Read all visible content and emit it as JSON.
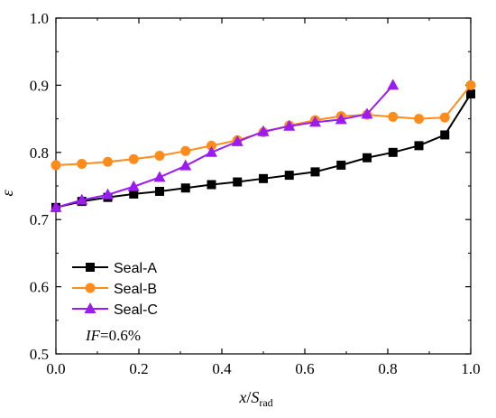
{
  "chart_data": {
    "type": "line",
    "title": "",
    "xlabel_main": "x",
    "xlabel_sep": "/",
    "xlabel_sym": "S",
    "xlabel_sub": "rad",
    "ylabel": "ε",
    "xlim": [
      0.0,
      1.0
    ],
    "ylim": [
      0.5,
      1.0
    ],
    "x_ticks": [
      0.0,
      0.2,
      0.4,
      0.6,
      0.8,
      1.0
    ],
    "x_tick_labels": [
      "0.0",
      "0.2",
      "0.4",
      "0.6",
      "0.8",
      "1.0"
    ],
    "y_ticks": [
      0.5,
      0.6,
      0.7,
      0.8,
      0.9,
      1.0
    ],
    "y_tick_labels": [
      "0.5",
      "0.6",
      "0.7",
      "0.8",
      "0.9",
      "1.0"
    ],
    "grid": false,
    "legend_position": "bottom-left",
    "annotation_italic": "IF",
    "annotation_rest": "=0.6%",
    "series": [
      {
        "name": "Seal-A",
        "marker": "square",
        "color": "#000000",
        "x": [
          0.0,
          0.0625,
          0.125,
          0.1875,
          0.25,
          0.3125,
          0.375,
          0.4375,
          0.5,
          0.5625,
          0.625,
          0.6875,
          0.75,
          0.8125,
          0.875,
          0.9375,
          1.0
        ],
        "y": [
          0.718,
          0.727,
          0.733,
          0.738,
          0.742,
          0.747,
          0.752,
          0.756,
          0.761,
          0.766,
          0.771,
          0.781,
          0.792,
          0.8,
          0.81,
          0.826,
          0.887
        ]
      },
      {
        "name": "Seal-B",
        "marker": "circle",
        "color": "#ff8c1a",
        "x": [
          0.0,
          0.0625,
          0.125,
          0.1875,
          0.25,
          0.3125,
          0.375,
          0.4375,
          0.5,
          0.5625,
          0.625,
          0.6875,
          0.75,
          0.8125,
          0.875,
          0.9375,
          1.0
        ],
        "y": [
          0.781,
          0.783,
          0.786,
          0.79,
          0.795,
          0.802,
          0.81,
          0.818,
          0.83,
          0.84,
          0.848,
          0.854,
          0.856,
          0.853,
          0.85,
          0.852,
          0.9
        ]
      },
      {
        "name": "Seal-C",
        "marker": "triangle",
        "color": "#9b1cf2",
        "x": [
          0.0,
          0.0625,
          0.125,
          0.1875,
          0.25,
          0.3125,
          0.375,
          0.4375,
          0.5,
          0.5625,
          0.625,
          0.6875,
          0.75,
          0.8125
        ],
        "y": [
          0.718,
          0.729,
          0.737,
          0.749,
          0.763,
          0.78,
          0.8,
          0.816,
          0.831,
          0.839,
          0.845,
          0.849,
          0.857,
          0.9
        ]
      }
    ]
  }
}
